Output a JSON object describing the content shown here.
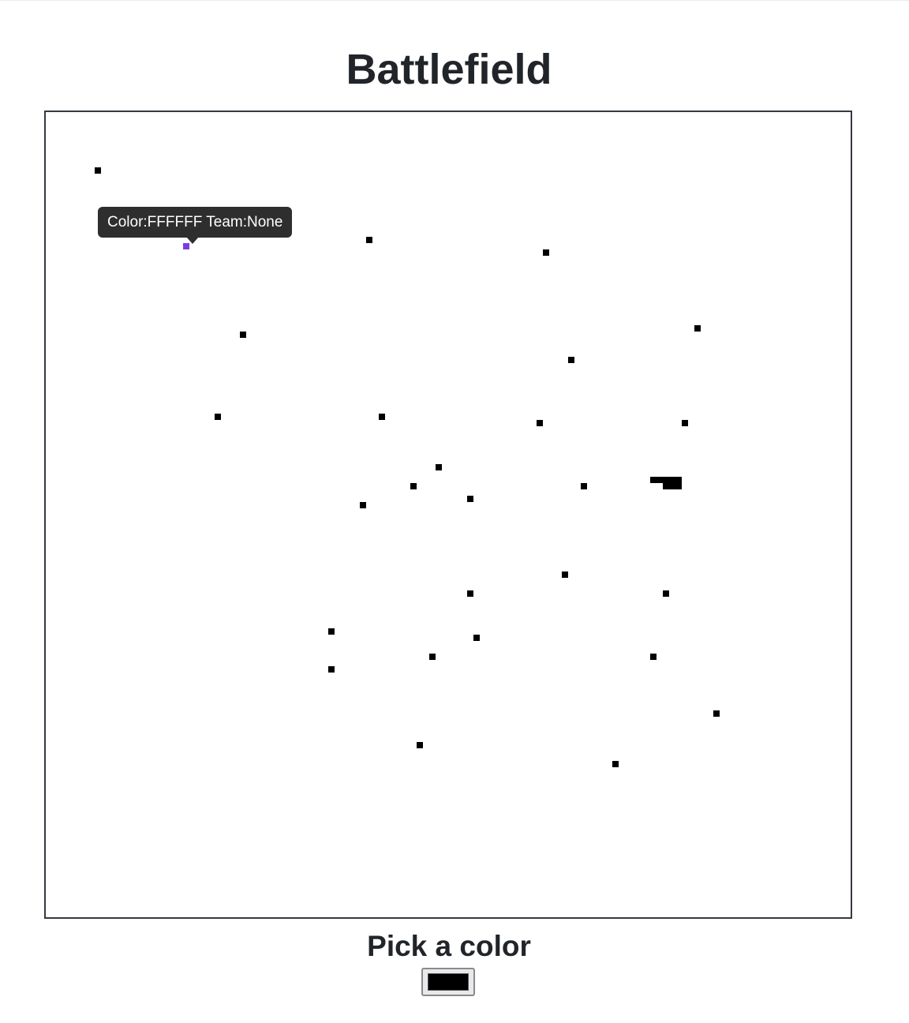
{
  "page": {
    "title": "Battlefield"
  },
  "battlefield": {
    "default_pixel_color": "#000000",
    "highlight_pixel_color": "#7a3ee0",
    "pixels": [
      {
        "col": 8,
        "row": 9
      },
      {
        "col": 22,
        "row": 21,
        "highlight": true
      },
      {
        "col": 51,
        "row": 20
      },
      {
        "col": 79,
        "row": 22
      },
      {
        "col": 31,
        "row": 35
      },
      {
        "col": 103,
        "row": 34
      },
      {
        "col": 83,
        "row": 39
      },
      {
        "col": 27,
        "row": 48
      },
      {
        "col": 53,
        "row": 48
      },
      {
        "col": 78,
        "row": 49
      },
      {
        "col": 101,
        "row": 49
      },
      {
        "col": 62,
        "row": 56
      },
      {
        "col": 58,
        "row": 59
      },
      {
        "col": 85,
        "row": 59
      },
      {
        "col": 67,
        "row": 61
      },
      {
        "col": 50,
        "row": 62
      },
      {
        "col": 96,
        "row": 58
      },
      {
        "col": 97,
        "row": 58
      },
      {
        "col": 98,
        "row": 58
      },
      {
        "col": 99,
        "row": 58
      },
      {
        "col": 100,
        "row": 58
      },
      {
        "col": 98,
        "row": 59
      },
      {
        "col": 99,
        "row": 59
      },
      {
        "col": 100,
        "row": 59
      },
      {
        "col": 82,
        "row": 73
      },
      {
        "col": 67,
        "row": 76
      },
      {
        "col": 98,
        "row": 76
      },
      {
        "col": 45,
        "row": 82
      },
      {
        "col": 68,
        "row": 83
      },
      {
        "col": 61,
        "row": 86
      },
      {
        "col": 96,
        "row": 86
      },
      {
        "col": 45,
        "row": 88
      },
      {
        "col": 106,
        "row": 95
      },
      {
        "col": 59,
        "row": 100
      },
      {
        "col": 90,
        "row": 103
      }
    ]
  },
  "tooltip": {
    "text": "Color:FFFFFF Team:None"
  },
  "color_picker": {
    "label": "Pick a color",
    "value": "#000000"
  }
}
